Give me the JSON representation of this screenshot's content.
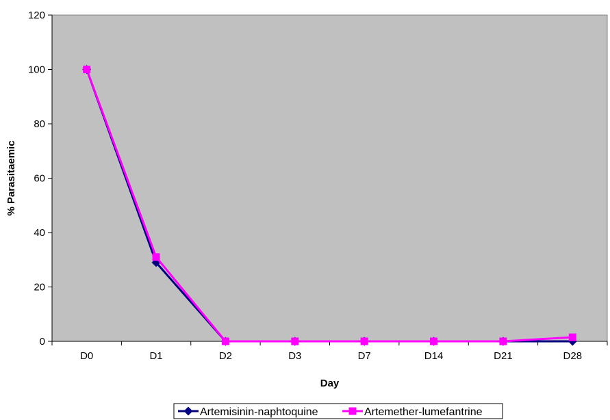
{
  "chart_data": {
    "type": "line",
    "title": "",
    "xlabel": "Day",
    "ylabel": "% Parasitaemic",
    "categories": [
      "D0",
      "D1",
      "D2",
      "D3",
      "D7",
      "D14",
      "D21",
      "D28"
    ],
    "ylim": [
      0,
      120
    ],
    "yticks": [
      0,
      20,
      40,
      60,
      80,
      100,
      120
    ],
    "grid": false,
    "plot_background": "#C0C0C0",
    "legend_position": "bottom",
    "series": [
      {
        "name": "Artemisinin-naphtoquine",
        "color": "#000080",
        "marker": "diamond",
        "values": [
          100,
          29,
          0,
          0,
          0,
          0,
          0,
          0
        ]
      },
      {
        "name": "Artemether-lumefantrine",
        "color": "#FF00FF",
        "marker": "square",
        "values": [
          100,
          31,
          0,
          0,
          0,
          0,
          0,
          1.5
        ]
      }
    ]
  }
}
